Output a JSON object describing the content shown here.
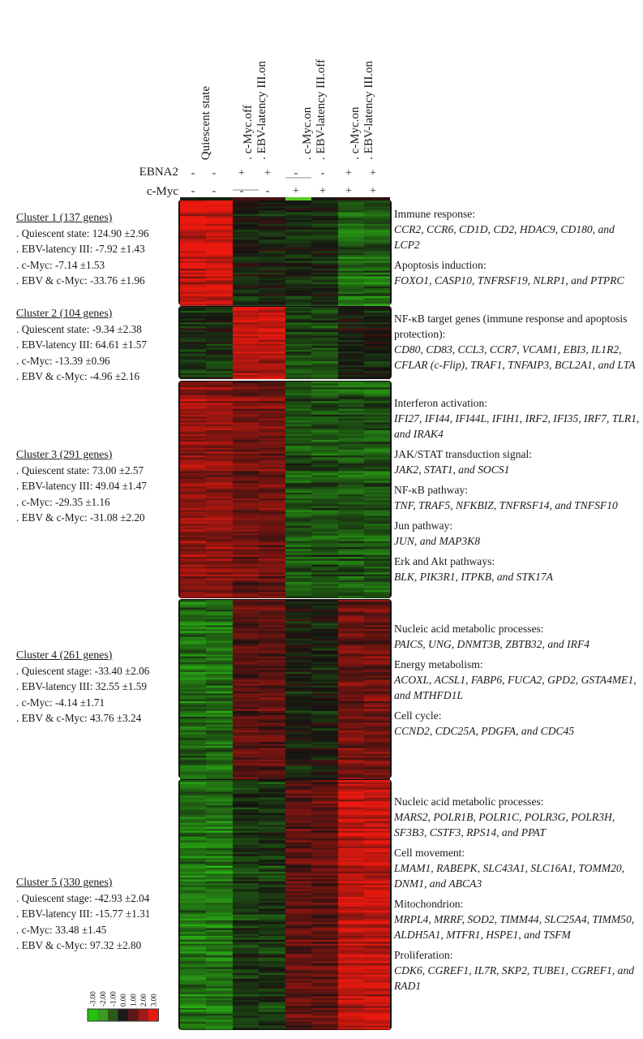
{
  "chart_data": {
    "type": "heatmap",
    "columns": [
      {
        "label": "Quiescent state",
        "ebna2": [
          "-",
          "-"
        ],
        "cmyc": [
          "-",
          "-"
        ]
      },
      {
        "label": ". c-Myc.off\n. EBV-latency III.on",
        "ebna2": [
          "+",
          "+"
        ],
        "cmyc": [
          "-",
          "-"
        ]
      },
      {
        "label": ". c-Myc.on\n. EBV-latency III.off",
        "ebna2": [
          "-",
          "-"
        ],
        "cmyc": [
          "+",
          "+"
        ]
      },
      {
        "label": ". c-Myc.on\n. EBV-latency III.on",
        "ebna2": [
          "+",
          "+"
        ],
        "cmyc": [
          "+",
          "+"
        ]
      }
    ],
    "row_labels": [
      "EBNA2",
      "c-Myc"
    ],
    "legend": {
      "ticks": [
        "-3.00",
        "-2.00",
        "-1.00",
        "0.00",
        "1.00",
        "2.00",
        "3.00"
      ],
      "colors": [
        "#22c40c",
        "#3a9b1e",
        "#2a5a18",
        "#1a1a1a",
        "#5a1818",
        "#a01818",
        "#e81a10"
      ]
    },
    "clusters": [
      {
        "title": "Cluster 1 (137 genes)",
        "stats": [
          ". Quiescent state: 124.90 ±2.96",
          ". EBV-latency III: -7.92 ±1.43",
          ". c-Myc: -7.14 ±1.53",
          ". EBV & c-Myc: -33.76 ±1.96"
        ],
        "col_values": [
          2.6,
          -0.3,
          -0.4,
          -1.4
        ],
        "annotations": [
          {
            "heading": "Immune response:",
            "genes": "CCR2, CCR6, CD1D, CD2, HDAC9, CD180, and LCP2"
          },
          {
            "heading": "Apoptosis induction:",
            "genes": "FOXO1, CASP10, TNFRSF19, NLRP1, and PTPRC"
          }
        ]
      },
      {
        "title": "Cluster 2 (104 genes)",
        "stats": [
          ". Quiescent state: -9.34 ±2.38",
          ". EBV-latency III: 64.61 ±1.57",
          ". c-Myc: -13.39 ±0.96",
          ". EBV & c-Myc: -4.96 ±2.16"
        ],
        "col_values": [
          -0.4,
          2.3,
          -0.9,
          -0.2
        ],
        "annotations": [
          {
            "heading": "NF-κB target genes (immune response and apoptosis protection):",
            "genes": "CD80, CD83, CCL3, CCR7, VCAM1, EBI3, IL1R2, CFLAR (c-Flip), TRAF1, TNFAIP3, BCL2A1, and LTA"
          }
        ]
      },
      {
        "title": "Cluster 3 (291 genes)",
        "stats": [
          ". Quiescent state: 73.00 ±2.57",
          ". EBV-latency III: 49.04 ±1.47",
          ". c-Myc: -29.35 ±1.16",
          ". EBV & c-Myc: -31.08 ±2.20"
        ],
        "col_values": [
          1.8,
          1.3,
          -1.0,
          -1.1
        ],
        "annotations": [
          {
            "heading": "Interferon activation:",
            "genes": "IFI27, IFI44, IFI44L, IFIH1, IRF2, IFI35, IRF7, TLR1, and IRAK4"
          },
          {
            "heading": "JAK/STAT transduction signal:",
            "genes": "JAK2, STAT1, and SOCS1"
          },
          {
            "heading": "NF-κB pathway:",
            "genes": "TNF, TRAF5, NFKBIZ, TNFRSF14, and TNFSF10"
          },
          {
            "heading": "Jun pathway:",
            "genes": "JUN, and MAP3K8"
          },
          {
            "heading": "Erk and Akt pathways:",
            "genes": "BLK, PIK3R1, ITPKB, and STK17A"
          }
        ]
      },
      {
        "title": "Cluster 4 (261 genes)",
        "stats": [
          ". Quiescent stage: -33.40 ±2.06",
          ". EBV-latency III: 32.55 ±1.59",
          ". c-Myc: -4.14 ±1.71",
          ". EBV & c-Myc: 43.76 ±3.24"
        ],
        "col_values": [
          -1.4,
          0.9,
          -0.2,
          1.2
        ],
        "annotations": [
          {
            "heading": "Nucleic acid metabolic processes:",
            "genes": "PAICS, UNG, DNMT3B, ZBTB32, and IRF4"
          },
          {
            "heading": "Energy metabolism:",
            "genes": "ACOXL, ACSL1, FABP6, FUCA2, GPD2, GSTA4ME1, and MTHFD1L"
          },
          {
            "heading": "Cell cycle:",
            "genes": "CCND2, CDC25A, PDGFA, and CDC45"
          }
        ]
      },
      {
        "title": "Cluster 5 (330 genes)",
        "stats": [
          ". Quiescent stage: -42.93 ±2.04",
          ". EBV-latency III: -15.77 ±1.31",
          ". c-Myc: 33.48 ±1.45",
          ". EBV & c-Myc: 97.32 ±2.80"
        ],
        "col_values": [
          -1.6,
          -0.6,
          1.0,
          2.4
        ],
        "annotations": [
          {
            "heading": "Nucleic acid metabolic processes:",
            "genes": "MARS2, POLR1B, POLR1C, POLR3G, POLR3H, SF3B3, CSTF3, RPS14, and PPAT"
          },
          {
            "heading": "Cell movement:",
            "genes": "LMAM1, RABEPK, SLC43A1, SLC16A1, TOMM20, DNM1, and ABCA3"
          },
          {
            "heading": "Mitochondrion:",
            "genes": "MRPL4, MRRF, SOD2, TIMM44, SLC25A4, TIMM50, ALDH5A1, MTFR1, HSPE1, and TSFM"
          },
          {
            "heading": "Proliferation:",
            "genes": "CDK6, CGREF1, IL7R, SKP2, TUBE1, CGREF1, and RAD1"
          }
        ]
      }
    ]
  }
}
